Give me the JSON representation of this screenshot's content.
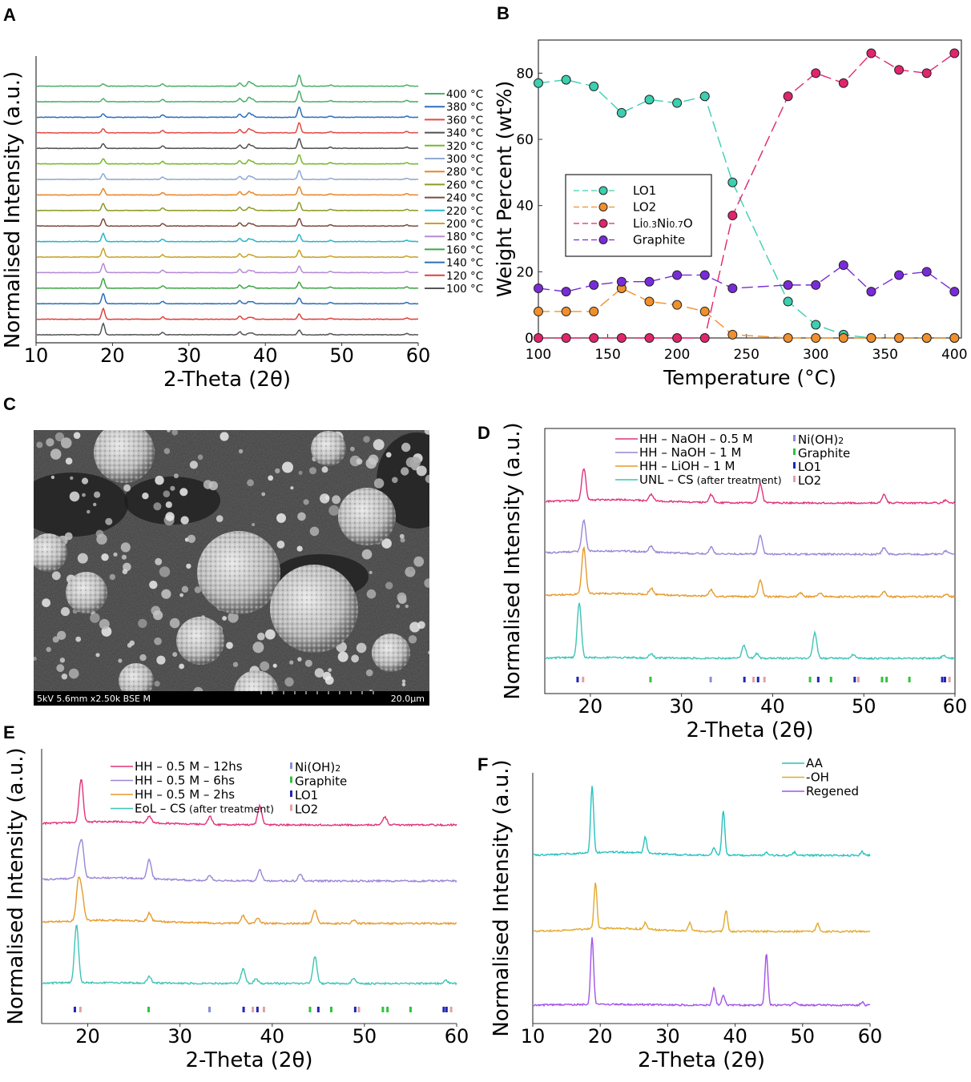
{
  "panels": {
    "A": "A",
    "B": "B",
    "C": "C",
    "D": "D",
    "E": "E",
    "F": "F"
  },
  "chart_data": [
    {
      "panel": "A",
      "type": "line",
      "xlabel": "2-Theta (2θ)",
      "ylabel": "Normalised Intensity (a.u.)",
      "xlim": [
        10,
        60
      ],
      "xticks": [
        10,
        20,
        30,
        40,
        50,
        60
      ],
      "peaks": [
        18.7,
        26.5,
        36.6,
        37.8,
        38.3,
        44.4,
        48.5,
        58.5
      ],
      "legend_placement": "right",
      "series": [
        {
          "name": "100 °C",
          "color": "#555555"
        },
        {
          "name": "120 °C",
          "color": "#e0403c"
        },
        {
          "name": "140 °C",
          "color": "#2d6fb6"
        },
        {
          "name": "160 °C",
          "color": "#3fa748"
        },
        {
          "name": "180 °C",
          "color": "#b58ad6"
        },
        {
          "name": "200 °C",
          "color": "#c9a227"
        },
        {
          "name": "220 °C",
          "color": "#29b5c7"
        },
        {
          "name": "240 °C",
          "color": "#7d4b3d"
        },
        {
          "name": "260 °C",
          "color": "#8c9a21"
        },
        {
          "name": "280 °C",
          "color": "#e8862a"
        },
        {
          "name": "300 °C",
          "color": "#8fa9d3"
        },
        {
          "name": "320 °C",
          "color": "#76b82a"
        },
        {
          "name": "340 °C",
          "color": "#505050"
        },
        {
          "name": "360 °C",
          "color": "#e34a45"
        },
        {
          "name": "380 °C",
          "color": "#2f6fbf"
        },
        {
          "name": "400 °C",
          "color": "#4caf6b"
        }
      ]
    },
    {
      "panel": "B",
      "type": "scatter",
      "xlabel": "Temperature (°C)",
      "ylabel": "Weight Percent (wt%)",
      "xlim": [
        100,
        405
      ],
      "ylim": [
        0,
        90
      ],
      "xticks": [
        100,
        150,
        200,
        250,
        300,
        350,
        400
      ],
      "yticks": [
        0,
        20,
        40,
        60,
        80
      ],
      "legend_placement": "center-left",
      "x": [
        100,
        120,
        140,
        160,
        180,
        200,
        220,
        240,
        280,
        300,
        320,
        340,
        360,
        380,
        400
      ],
      "series": [
        {
          "name": "LO1",
          "color": "#3ccfb0",
          "values": [
            77,
            78,
            76,
            68,
            72,
            71,
            73,
            47,
            11,
            4,
            1,
            0,
            0,
            0,
            0
          ]
        },
        {
          "name": "LO2",
          "color": "#f0902c",
          "values": [
            8,
            8,
            8,
            15,
            11,
            10,
            8,
            1,
            0,
            0,
            0,
            0,
            0,
            0,
            0
          ]
        },
        {
          "name_parts": [
            "Li",
            "0.3",
            "Ni",
            "0.7",
            "O"
          ],
          "color": "#e0256c",
          "values": [
            0,
            0,
            0,
            0,
            0,
            0,
            0,
            37,
            73,
            80,
            77,
            86,
            81,
            80,
            86
          ]
        },
        {
          "name": "Graphite",
          "color": "#7a2bd9",
          "values": [
            15,
            14,
            16,
            17,
            17,
            19,
            19,
            15,
            16,
            16,
            22,
            14,
            19,
            20,
            14
          ]
        }
      ]
    },
    {
      "panel": "C",
      "type": "image",
      "caption_left": "5kV 5.6mm x2.50k BSE M",
      "caption_right": "20.0µm"
    },
    {
      "panel": "D",
      "type": "line",
      "xlabel": "2-Theta (2θ)",
      "ylabel": "Normalised Intensity (a.u.)",
      "xlim": [
        15,
        60
      ],
      "xticks": [
        20,
        30,
        40,
        50,
        60
      ],
      "legend_placement": "top",
      "series": [
        {
          "name": "UNL – CS",
          "note": "(after treatment)",
          "color": "#3ec4b6",
          "peaks": [
            18.7,
            26.6,
            36.8,
            38.2,
            44.6,
            48.8,
            58.8
          ]
        },
        {
          "name": "HH – LiOH – 1 M",
          "color": "#e69a2c",
          "peaks": [
            19.2,
            26.6,
            33.2,
            38.6,
            43.0,
            45.2,
            52.2,
            59.0
          ]
        },
        {
          "name": "HH – NaOH – 1 M",
          "color": "#9a86d6",
          "peaks": [
            19.2,
            26.6,
            33.2,
            38.6,
            52.2,
            59.0
          ]
        },
        {
          "name": "HH – NaOH – 0.5 M",
          "color": "#e0337a",
          "peaks": [
            19.2,
            26.6,
            33.2,
            38.6,
            52.2,
            59.0
          ]
        }
      ],
      "markers": [
        {
          "name_parts": [
            "Ni(OH)",
            "2"
          ],
          "color": "#8c8cd9"
        },
        {
          "name": "Graphite",
          "color": "#31c43c"
        },
        {
          "name": "LO1",
          "color": "#2424b8"
        },
        {
          "name": "LO2",
          "color": "#e3a0a6"
        }
      ]
    },
    {
      "panel": "E",
      "type": "line",
      "xlabel": "2-Theta (2θ)",
      "ylabel": "Normalised Intensity (a.u.)",
      "xlim": [
        15,
        60
      ],
      "xticks": [
        20,
        30,
        40,
        50,
        60
      ],
      "legend_placement": "top",
      "series": [
        {
          "name": "EoL – CS",
          "note": "(after treatment)",
          "color": "#3ec4b6",
          "peaks": [
            18.7,
            26.6,
            36.8,
            38.2,
            44.6,
            48.8,
            58.8
          ]
        },
        {
          "name": "HH – 0.5 M – 2hs",
          "color": "#e69a2c",
          "peaks": [
            18.9,
            19.3,
            26.6,
            36.8,
            38.4,
            44.6,
            48.8
          ]
        },
        {
          "name": "HH – 0.5 M – 6hs",
          "color": "#9a86d6",
          "peaks": [
            18.9,
            19.3,
            26.6,
            33.2,
            38.6,
            43.0
          ]
        },
        {
          "name": "HH – 0.5 M – 12hs",
          "color": "#e0337a",
          "peaks": [
            19.2,
            26.6,
            33.2,
            38.6,
            52.2
          ]
        }
      ],
      "markers": [
        {
          "name_parts": [
            "Ni(OH)",
            "2"
          ],
          "color": "#8c8cd9"
        },
        {
          "name": "Graphite",
          "color": "#31c43c"
        },
        {
          "name": "LO1",
          "color": "#2424b8"
        },
        {
          "name": "LO2",
          "color": "#e3a0a6"
        }
      ]
    },
    {
      "panel": "F",
      "type": "line",
      "xlabel": "2-Theta (2θ)",
      "ylabel": "Normalised Intensity (a.u.)",
      "xlim": [
        10,
        60
      ],
      "xticks": [
        10,
        20,
        30,
        40,
        50,
        60
      ],
      "legend_placement": "top-left",
      "series": [
        {
          "name": "Regened",
          "color": "#a452e8",
          "peaks": [
            18.7,
            36.8,
            38.2,
            44.6,
            48.8,
            58.8
          ]
        },
        {
          "name": "-OH",
          "color": "#e3a92c",
          "peaks": [
            19.2,
            26.6,
            33.2,
            38.6,
            52.2
          ]
        },
        {
          "name": "AA",
          "color": "#27c2c0",
          "peaks": [
            18.7,
            26.6,
            36.8,
            38.2,
            44.6,
            48.8,
            58.8
          ]
        }
      ]
    }
  ]
}
